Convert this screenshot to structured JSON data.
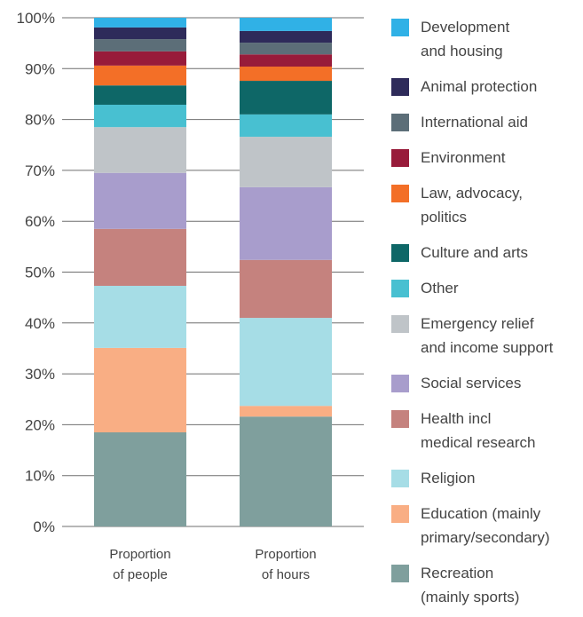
{
  "chart_data": {
    "type": "stacked_bar",
    "categories": [
      "Proportion\nof people",
      "Proportion\nof hours"
    ],
    "ylim": [
      0,
      100
    ],
    "yticks": [
      {
        "value": 0,
        "label": "0%"
      },
      {
        "value": 10,
        "label": "10%"
      },
      {
        "value": 20,
        "label": "20%"
      },
      {
        "value": 30,
        "label": "30%"
      },
      {
        "value": 40,
        "label": "40%"
      },
      {
        "value": 50,
        "label": "50%"
      },
      {
        "value": 60,
        "label": "60%"
      },
      {
        "value": 70,
        "label": "70%"
      },
      {
        "value": 80,
        "label": "80%"
      },
      {
        "value": 90,
        "label": "90%"
      },
      {
        "value": 100,
        "label": "100%"
      }
    ],
    "grid": true,
    "series": [
      {
        "name": "Recreation\n(mainly sports)",
        "color": "#7f9f9d",
        "values": [
          18.5,
          21.6
        ]
      },
      {
        "name": "Education (mainly\nprimary/secondary)",
        "color": "#f9ae84",
        "values": [
          16.6,
          2.1
        ]
      },
      {
        "name": "Religion",
        "color": "#a6dde6",
        "values": [
          12.2,
          17.3
        ]
      },
      {
        "name": "Health incl\nmedical research",
        "color": "#c5827e",
        "values": [
          11.2,
          11.4
        ]
      },
      {
        "name": "Social services",
        "color": "#a89dcc",
        "values": [
          11.0,
          14.3
        ]
      },
      {
        "name": "Emergency relief\nand income support",
        "color": "#bfc4c8",
        "values": [
          9.0,
          9.9
        ]
      },
      {
        "name": "Other",
        "color": "#48c0d1",
        "values": [
          4.4,
          4.4
        ]
      },
      {
        "name": "Culture and arts",
        "color": "#0e6767",
        "values": [
          3.8,
          6.6
        ]
      },
      {
        "name": "Law, advocacy,\npolitics",
        "color": "#f36f27",
        "values": [
          3.9,
          2.8
        ]
      },
      {
        "name": "Environment",
        "color": "#981b3a",
        "values": [
          2.8,
          2.4
        ]
      },
      {
        "name": "International aid",
        "color": "#5c6e78",
        "values": [
          2.4,
          2.3
        ]
      },
      {
        "name": "Animal protection",
        "color": "#2e2b5a",
        "values": [
          2.3,
          2.3
        ]
      },
      {
        "name": "Development\nand housing",
        "color": "#30b1e6",
        "values": [
          1.9,
          2.6
        ]
      }
    ]
  }
}
